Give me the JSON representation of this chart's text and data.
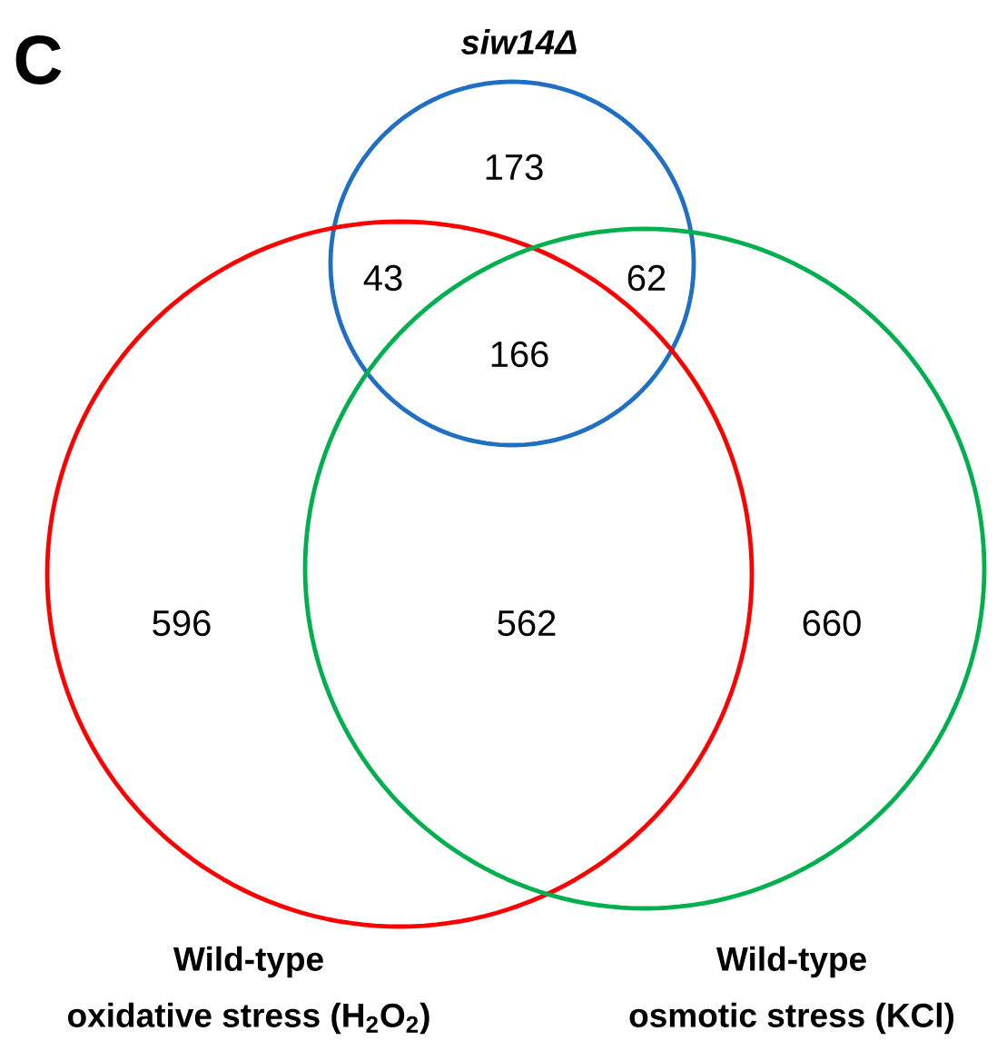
{
  "chart_data": {
    "type": "other",
    "categories": [
      null,
      null,
      null,
      null,
      null,
      null,
      null
    ],
    "values": [
      173,
      43,
      62,
      166,
      596,
      562,
      660
    ],
    "data_labels": true,
    "annotations": [
      "C",
      "siw14Δ",
      "Wild-type oxidative stress (H$_{2}$O$_{2}$)",
      "Wild-type osmotic stress (KCl)"
    ]
  }
}
